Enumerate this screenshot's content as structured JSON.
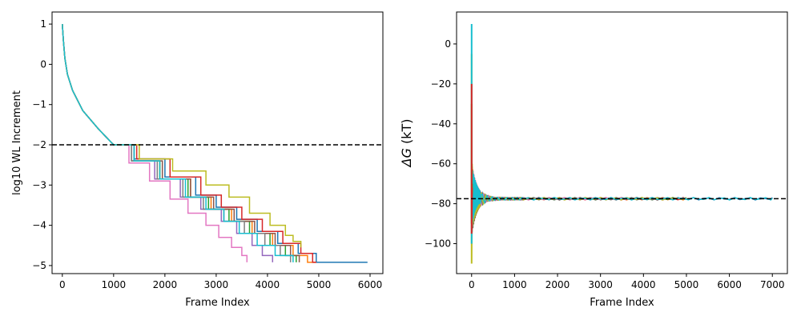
{
  "chart_data": [
    {
      "type": "line",
      "title": "",
      "xlabel": "Frame Index",
      "ylabel": "log10 WL Increment",
      "xlim": [
        -200,
        6250
      ],
      "ylim": [
        -5.2,
        1.3
      ],
      "xticks": [
        0,
        1000,
        2000,
        3000,
        4000,
        5000,
        6000
      ],
      "yticks": [
        1,
        0,
        -1,
        -2,
        -3,
        -4,
        -5
      ],
      "xtick_labels": [
        "0",
        "1000",
        "2000",
        "3000",
        "4000",
        "5000",
        "6000"
      ],
      "ytick_labels": [
        "1",
        "0",
        "−1",
        "−2",
        "−3",
        "−4",
        "−5"
      ],
      "grid": false,
      "reference_line": {
        "y": -2,
        "style": "dashed",
        "color": "#000000"
      },
      "num_series": 10,
      "series_style": "step",
      "series": [
        {
          "color": "#1f77b4",
          "x": [
            0,
            20,
            50,
            100,
            200,
            400,
            700,
            1000,
            1400,
            2000,
            2600,
            3000,
            3400,
            3800,
            4200,
            4600,
            4950,
            5950
          ],
          "y": [
            1.0,
            0.6,
            0.15,
            -0.25,
            -0.65,
            -1.15,
            -1.6,
            -2.0,
            -2.35,
            -2.8,
            -3.25,
            -3.55,
            -3.85,
            -4.15,
            -4.45,
            -4.7,
            -4.92,
            -4.92
          ]
        },
        {
          "color": "#ff7f0e",
          "x": [
            0,
            20,
            50,
            100,
            200,
            400,
            700,
            1000,
            1350,
            1900,
            2500,
            2900,
            3300,
            3700,
            4100,
            4500,
            4780,
            4950
          ],
          "y": [
            1.0,
            0.6,
            0.15,
            -0.25,
            -0.65,
            -1.15,
            -1.6,
            -2.0,
            -2.4,
            -2.85,
            -3.3,
            -3.6,
            -3.9,
            -4.2,
            -4.5,
            -4.75,
            -4.92,
            -4.92
          ]
        },
        {
          "color": "#2ca02c",
          "x": [
            0,
            20,
            50,
            100,
            200,
            400,
            700,
            1000,
            1350,
            1900,
            2450,
            2850,
            3250,
            3650,
            4050,
            4350,
            4560
          ],
          "y": [
            1.0,
            0.6,
            0.15,
            -0.25,
            -0.65,
            -1.15,
            -1.6,
            -2.0,
            -2.4,
            -2.85,
            -3.3,
            -3.6,
            -3.9,
            -4.2,
            -4.5,
            -4.75,
            -4.92
          ]
        },
        {
          "color": "#d62728",
          "x": [
            0,
            20,
            50,
            100,
            200,
            400,
            700,
            1000,
            1450,
            2100,
            2700,
            3100,
            3500,
            3900,
            4300,
            4650,
            4880,
            4950
          ],
          "y": [
            1.0,
            0.6,
            0.15,
            -0.25,
            -0.65,
            -1.15,
            -1.6,
            -2.0,
            -2.35,
            -2.8,
            -3.25,
            -3.55,
            -3.85,
            -4.15,
            -4.45,
            -4.7,
            -4.92,
            -4.92
          ]
        },
        {
          "color": "#9467bd",
          "x": [
            0,
            20,
            50,
            100,
            200,
            400,
            700,
            1000,
            1350,
            1800,
            2300,
            2700,
            3100,
            3400,
            3700,
            3900,
            4100
          ],
          "y": [
            1.0,
            0.6,
            0.15,
            -0.25,
            -0.65,
            -1.15,
            -1.6,
            -2.0,
            -2.4,
            -2.85,
            -3.3,
            -3.6,
            -3.9,
            -4.2,
            -4.5,
            -4.75,
            -4.92
          ]
        },
        {
          "color": "#8c564b",
          "x": [
            0,
            20,
            50,
            100,
            200,
            400,
            700,
            1000,
            1400,
            1950,
            2500,
            2950,
            3350,
            3750,
            4150,
            4450,
            4620
          ],
          "y": [
            1.0,
            0.6,
            0.15,
            -0.25,
            -0.65,
            -1.15,
            -1.6,
            -2.0,
            -2.4,
            -2.85,
            -3.3,
            -3.6,
            -3.9,
            -4.2,
            -4.5,
            -4.75,
            -4.92
          ]
        },
        {
          "color": "#e377c2",
          "x": [
            0,
            20,
            50,
            100,
            200,
            400,
            700,
            1000,
            1300,
            1700,
            2100,
            2450,
            2800,
            3050,
            3300,
            3500,
            3600
          ],
          "y": [
            1.0,
            0.6,
            0.15,
            -0.25,
            -0.65,
            -1.15,
            -1.6,
            -2.0,
            -2.45,
            -2.9,
            -3.35,
            -3.7,
            -4.0,
            -4.3,
            -4.55,
            -4.75,
            -4.92
          ]
        },
        {
          "color": "#7f7f7f",
          "x": [
            0,
            20,
            50,
            100,
            200,
            400,
            700,
            1000,
            1350,
            1850,
            2350,
            2750,
            3150,
            3550,
            3950,
            4250,
            4450
          ],
          "y": [
            1.0,
            0.6,
            0.15,
            -0.25,
            -0.65,
            -1.15,
            -1.6,
            -2.0,
            -2.4,
            -2.85,
            -3.3,
            -3.6,
            -3.9,
            -4.2,
            -4.5,
            -4.75,
            -4.92
          ]
        },
        {
          "color": "#bcbd22",
          "x": [
            0,
            20,
            50,
            100,
            200,
            400,
            700,
            1000,
            1500,
            2150,
            2800,
            3250,
            3650,
            4050,
            4350,
            4500,
            4650
          ],
          "y": [
            1.0,
            0.6,
            0.15,
            -0.25,
            -0.65,
            -1.15,
            -1.6,
            -2.0,
            -2.35,
            -2.65,
            -3.0,
            -3.3,
            -3.7,
            -4.0,
            -4.25,
            -4.4,
            -4.55
          ]
        },
        {
          "color": "#17becf",
          "x": [
            0,
            20,
            50,
            100,
            200,
            400,
            700,
            1000,
            1400,
            1900,
            2400,
            2800,
            3150,
            3450,
            3800,
            4150,
            4500
          ],
          "y": [
            1.0,
            0.6,
            0.15,
            -0.25,
            -0.65,
            -1.15,
            -1.6,
            -2.0,
            -2.4,
            -2.85,
            -3.3,
            -3.6,
            -3.9,
            -4.2,
            -4.5,
            -4.75,
            -4.92
          ]
        }
      ]
    },
    {
      "type": "line",
      "title": "",
      "xlabel": "Frame Index",
      "ylabel": "ΔG (kT)",
      "xlim": [
        -350,
        7350
      ],
      "ylim": [
        -115,
        16
      ],
      "xticks": [
        0,
        1000,
        2000,
        3000,
        4000,
        5000,
        6000,
        7000
      ],
      "yticks": [
        0,
        -20,
        -40,
        -60,
        -80,
        -100
      ],
      "xtick_labels": [
        "0",
        "1000",
        "2000",
        "3000",
        "4000",
        "5000",
        "6000",
        "7000"
      ],
      "ytick_labels": [
        "0",
        "−20",
        "−40",
        "−60",
        "−80",
        "−100"
      ],
      "grid": false,
      "reference_line": {
        "y": -77.5,
        "style": "dashed",
        "color": "#000000"
      },
      "num_series": 10,
      "converged_value": -77.5,
      "series_colors": [
        "#1f77b4",
        "#ff7f0e",
        "#2ca02c",
        "#d62728",
        "#9467bd",
        "#8c564b",
        "#e377c2",
        "#7f7f7f",
        "#bcbd22",
        "#17becf"
      ],
      "series_extent": [
        7000,
        5000,
        5000,
        5000,
        4200,
        4700,
        3600,
        4500,
        4700,
        7000
      ],
      "initial_spike": [
        {
          "color": "#bcbd22",
          "x": [
            0,
            0,
            10,
            20
          ],
          "y": [
            -5,
            -110,
            -60,
            -75
          ]
        },
        {
          "color": "#17becf",
          "x": [
            0,
            0,
            10,
            20
          ],
          "y": [
            10,
            -100,
            -65,
            -78
          ]
        },
        {
          "color": "#2ca02c",
          "x": [
            0,
            0,
            10
          ],
          "y": [
            -30,
            -90,
            -70
          ]
        },
        {
          "color": "#d62728",
          "x": [
            0,
            0,
            10
          ],
          "y": [
            -20,
            -95,
            -72
          ]
        }
      ]
    }
  ]
}
